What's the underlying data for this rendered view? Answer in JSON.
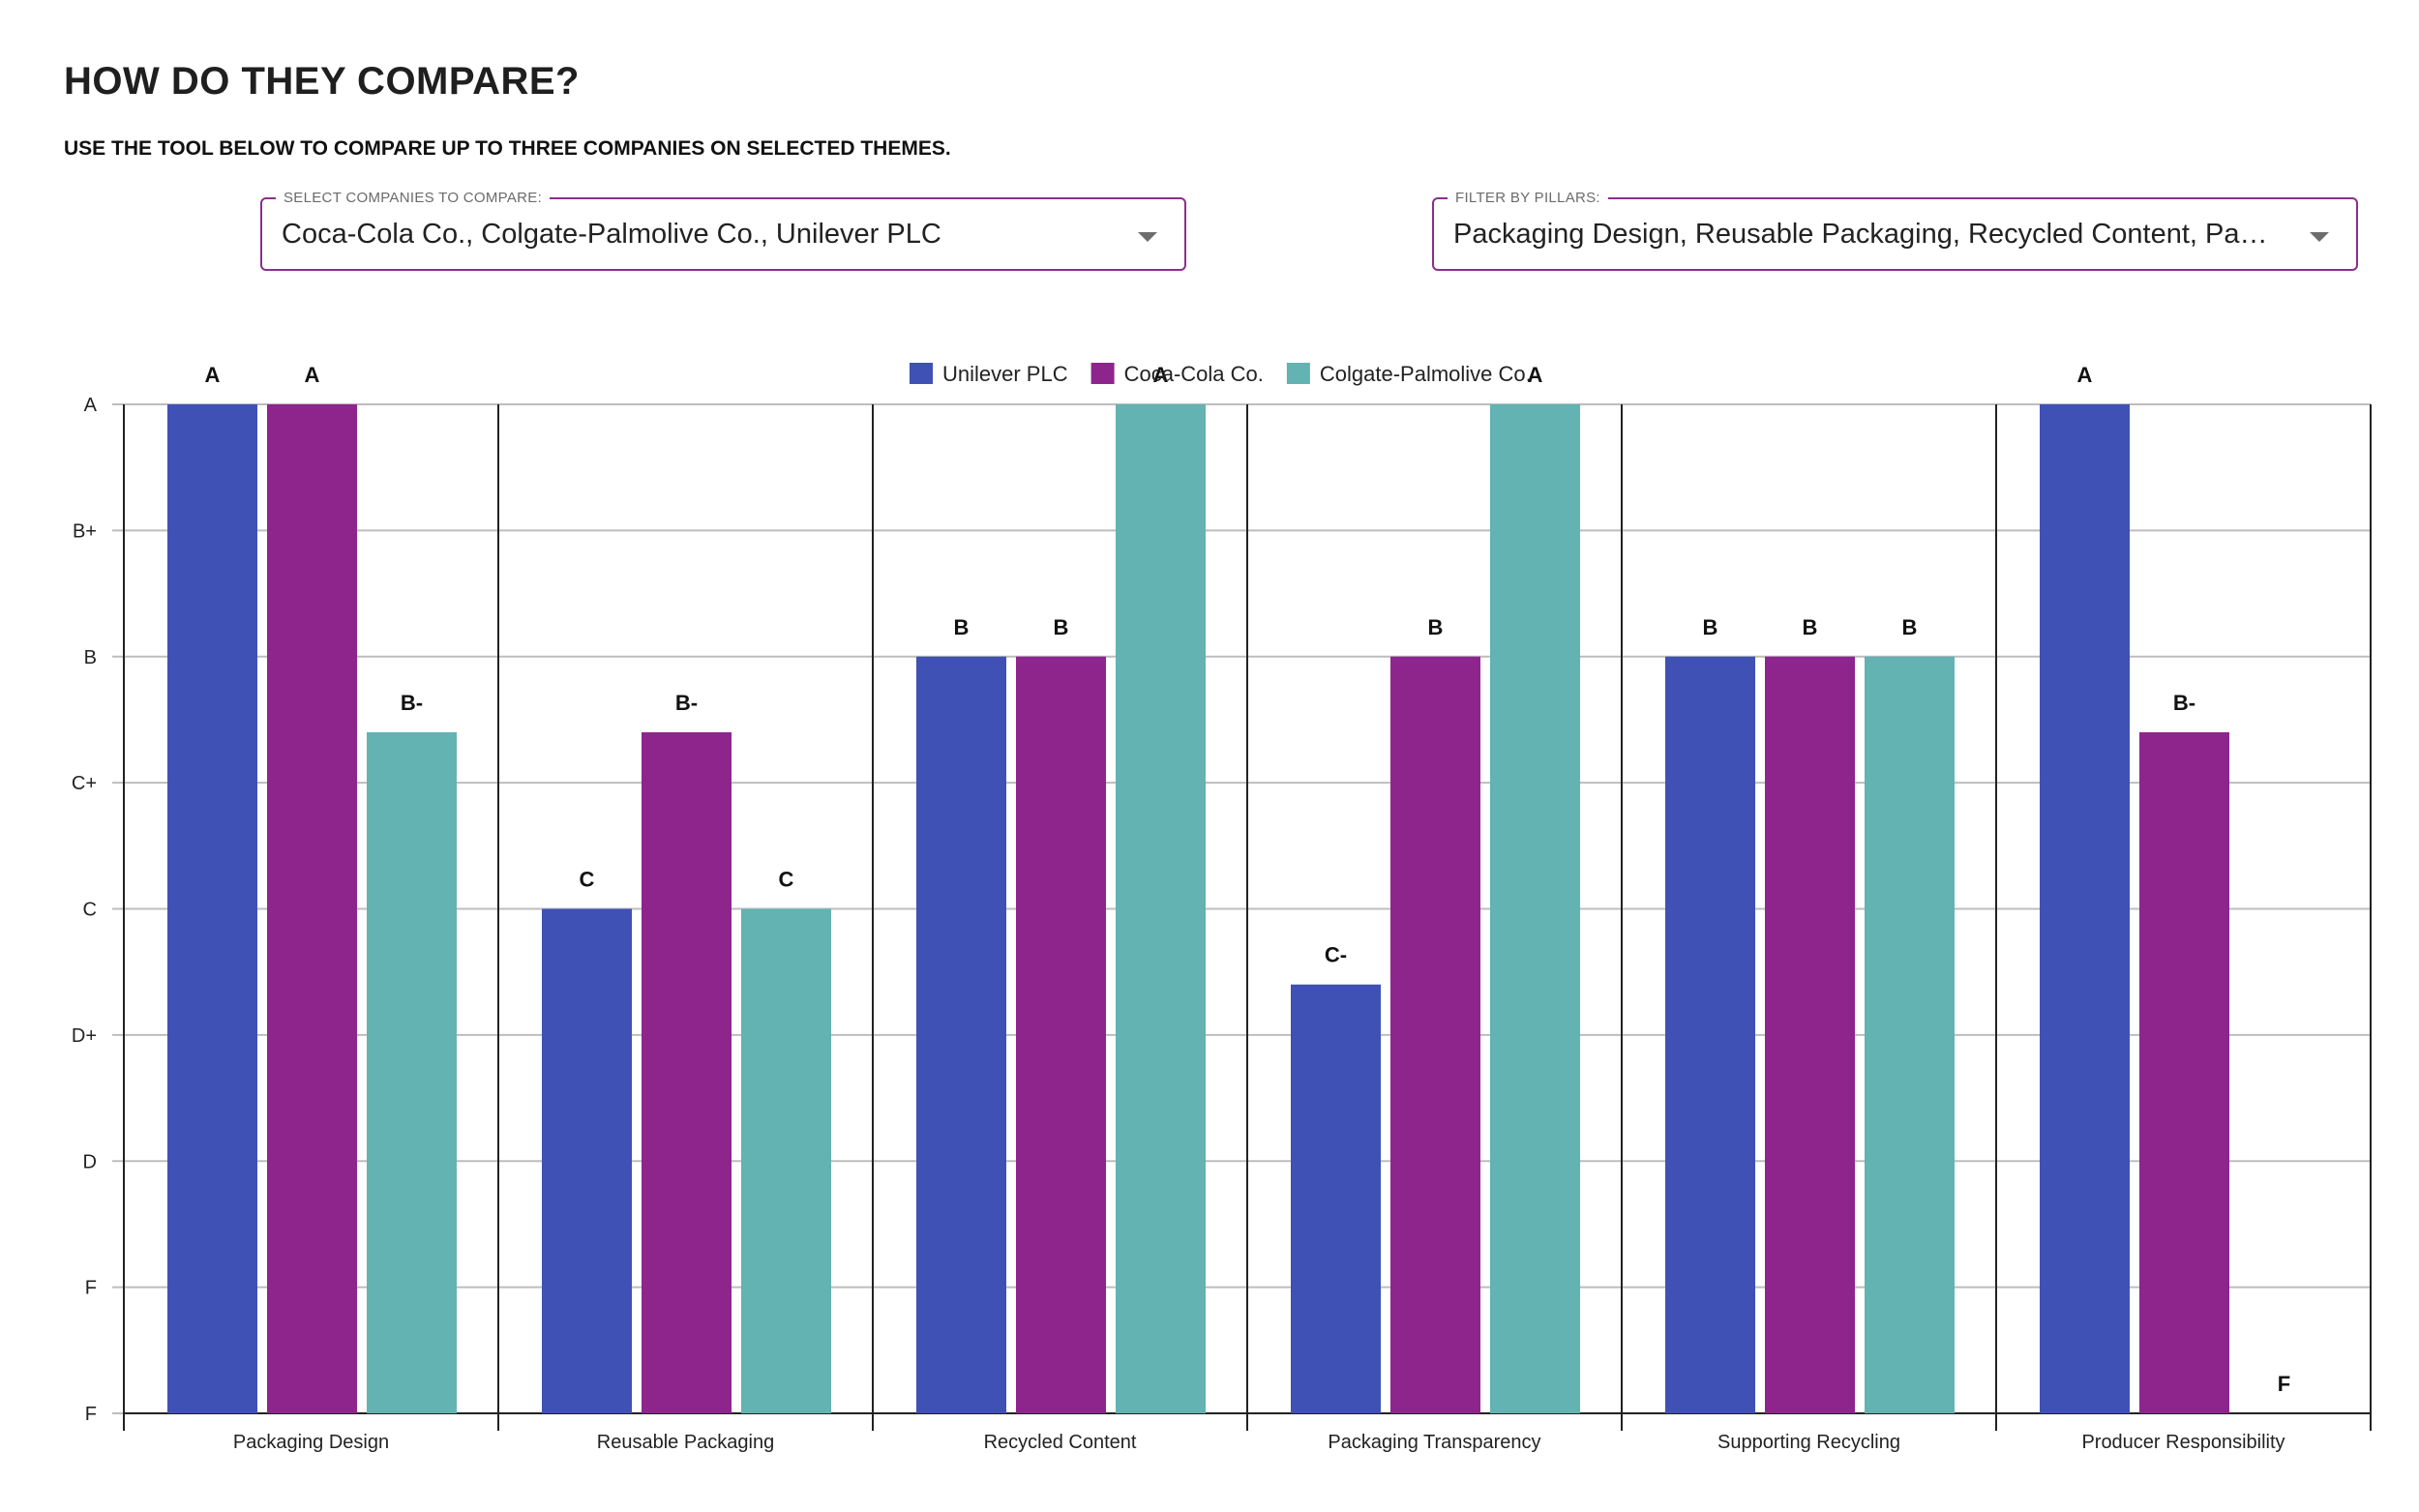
{
  "header": {
    "title": "HOW DO THEY COMPARE?",
    "subtitle": "USE THE TOOL BELOW TO COMPARE UP TO THREE COMPANIES ON SELECTED THEMES."
  },
  "filters": {
    "companies": {
      "label": "SELECT COMPANIES TO COMPARE:",
      "value": "Coca-Cola Co., Colgate-Palmolive Co., Unilever PLC"
    },
    "pillars": {
      "label": "FILTER BY PILLARS:",
      "value": "Packaging Design, Reusable Packaging, Recycled Content, Packaging Transparency, Supporting Recycling, Producer Responsibility"
    }
  },
  "chart_data": {
    "type": "bar",
    "grade_scale": [
      "F",
      "F",
      "D",
      "D+",
      "C",
      "C+",
      "B",
      "B+",
      "A"
    ],
    "categories": [
      "Packaging Design",
      "Reusable Packaging",
      "Recycled Content",
      "Packaging Transparency",
      "Supporting Recycling",
      "Producer Responsibility"
    ],
    "series": [
      {
        "name": "Unilever PLC",
        "color": "#3f51b5",
        "values": [
          8,
          4,
          6,
          3.4,
          6,
          8
        ],
        "labels": [
          "A",
          "C",
          "B",
          "C-",
          "B",
          "A"
        ]
      },
      {
        "name": "Coca-Cola Co.",
        "color": "#8e258d",
        "values": [
          8,
          5.4,
          6,
          6,
          6,
          5.4
        ],
        "labels": [
          "A",
          "B-",
          "B",
          "B",
          "B",
          "B-"
        ]
      },
      {
        "name": "Colgate-Palmolive Co.",
        "color": "#62b3b1",
        "values": [
          5.4,
          4,
          8,
          8,
          6,
          0
        ],
        "labels": [
          "B-",
          "C",
          "A",
          "A",
          "B",
          "F"
        ]
      }
    ],
    "ylim": [
      0,
      8
    ],
    "grid": true,
    "legend_position": "top-center"
  }
}
